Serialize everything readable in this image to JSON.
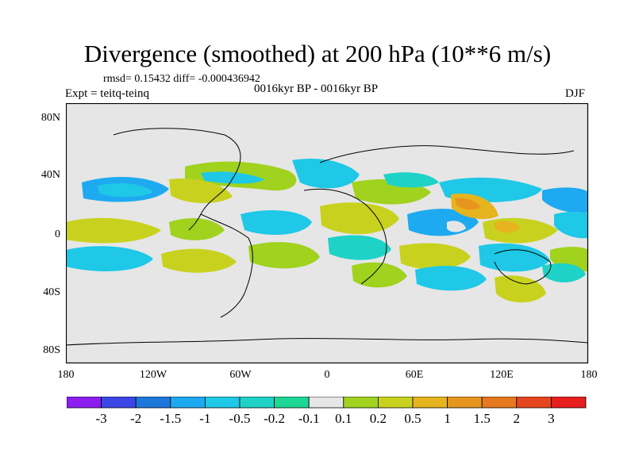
{
  "title": "Divergence (smoothed) at 200 hPa (10**6 m/s)",
  "stats": "rmsd= 0.15432 diff= -0.000436942",
  "experiment": "Expt = teitq-teinq",
  "period": "0016kyr BP - 0016kyr BP",
  "season": "DJF",
  "lat_labels": [
    "80N",
    "40N",
    "0",
    "40S",
    "80S"
  ],
  "lon_labels": [
    "180",
    "120W",
    "60W",
    "0",
    "60E",
    "120E",
    "180"
  ],
  "colorbar": {
    "labels": [
      "-3",
      "-2",
      "-1.5",
      "-1",
      "-0.5",
      "-0.2",
      "-0.1",
      "0.1",
      "0.2",
      "0.5",
      "1",
      "1.5",
      "2",
      "3"
    ],
    "colors": [
      "#8c1ef0",
      "#3c46e6",
      "#1e78dc",
      "#1eaaf0",
      "#1ec8e6",
      "#1ed2c8",
      "#1ed796",
      "#e6e6e6",
      "#a0d21e",
      "#c8d21e",
      "#e6b41e",
      "#e6961e",
      "#e6781e",
      "#e6461e",
      "#e61e1e"
    ]
  },
  "colors": {
    "background": "#e6e6e6",
    "frame": "#000000",
    "coast": "#000000"
  }
}
